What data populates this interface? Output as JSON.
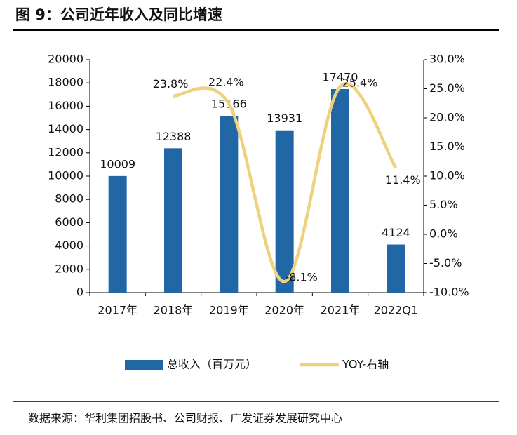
{
  "chart_data": {
    "type": "bar-line",
    "title": "图 9：公司近年收入及同比增速",
    "source": "数据来源：华利集团招股书、公司财报、广发证券发展研究中心",
    "categories": [
      "2017年",
      "2018年",
      "2019年",
      "2020年",
      "2021年",
      "2022Q1"
    ],
    "series": [
      {
        "name": "总收入（百万元）",
        "color": "#2166a5",
        "type": "bar",
        "values": [
          10009,
          12388,
          15166,
          13931,
          17470,
          4124
        ]
      },
      {
        "name": "YOY-右轴",
        "color": "#eed27f",
        "type": "line",
        "axis": "y2",
        "values": [
          null,
          23.8,
          22.4,
          -8.1,
          25.4,
          11.4
        ],
        "value_labels": [
          null,
          "23.8%",
          "22.4%",
          "-8.1%",
          "25.4%",
          "11.4%"
        ]
      }
    ],
    "ylim": [
      0,
      20000
    ],
    "yticks": [
      0,
      2000,
      4000,
      6000,
      8000,
      10000,
      12000,
      14000,
      16000,
      18000,
      20000
    ],
    "y2lim": [
      -10,
      30
    ],
    "y2ticks": [
      {
        "value": -10,
        "label": "-10.0%"
      },
      {
        "value": -5,
        "label": "-5.0%"
      },
      {
        "value": 0,
        "label": "0.0%"
      },
      {
        "value": 5,
        "label": "5.0%"
      },
      {
        "value": 10,
        "label": "10.0%"
      },
      {
        "value": 15,
        "label": "15.0%"
      },
      {
        "value": 20,
        "label": "20.0%"
      },
      {
        "value": 25,
        "label": "25.0%"
      },
      {
        "value": 30,
        "label": "30.0%"
      }
    ],
    "grid": false,
    "legend": "bottom"
  }
}
